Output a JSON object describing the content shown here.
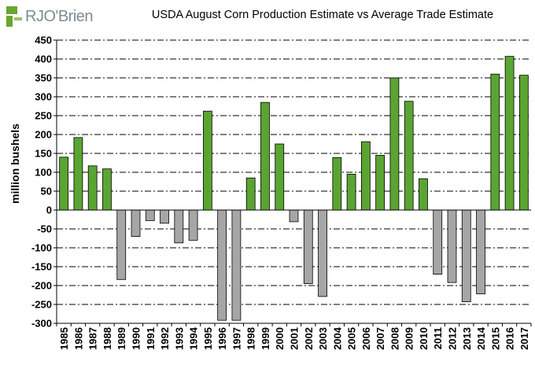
{
  "logo": {
    "text": "RJO'Brien",
    "mark_color": "#6aa52f"
  },
  "chart_data": {
    "type": "bar",
    "title": "USDA August Corn Production Estimate vs Average Trade Estimate",
    "ylabel": "million bushels",
    "xlabel": "",
    "ylim": [
      -300,
      450
    ],
    "yticks": [
      450,
      400,
      350,
      300,
      250,
      200,
      150,
      100,
      50,
      0,
      -50,
      -100,
      -150,
      -200,
      -250,
      -300
    ],
    "grid": true,
    "legend": "none",
    "colors": {
      "positive": "#5aa531",
      "negative": "#a6a6a6"
    },
    "categories": [
      "1985",
      "1986",
      "1987",
      "1988",
      "1989",
      "1990",
      "1991",
      "1992",
      "1993",
      "1994",
      "1995",
      "1996",
      "1997",
      "1998",
      "1999",
      "2000",
      "2001",
      "2002",
      "2003",
      "2004",
      "2005",
      "2006",
      "2007",
      "2008",
      "2009",
      "2010",
      "2011",
      "2012",
      "2013",
      "2014",
      "2015",
      "2016",
      "2017"
    ],
    "values": [
      140,
      192,
      117,
      109,
      -184,
      -70,
      -28,
      -35,
      -87,
      -80,
      262,
      -292,
      -292,
      85,
      285,
      175,
      -31,
      -195,
      -229,
      139,
      95,
      181,
      145,
      350,
      288,
      83,
      -170,
      -192,
      -243,
      -222,
      360,
      407,
      357
    ]
  }
}
